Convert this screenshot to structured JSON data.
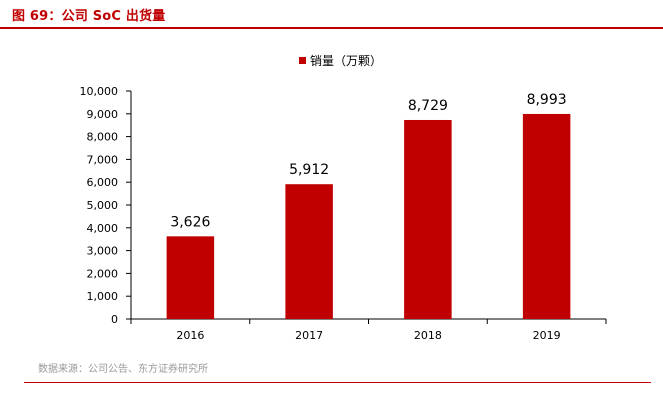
{
  "figure": {
    "title": "图 69：公司 SoC 出货量",
    "source": "数据来源：公司公告、东方证券研究所"
  },
  "colors": {
    "accent": "#c00000",
    "bar": "#c00000",
    "axis": "#000000"
  },
  "chart_data": {
    "type": "bar",
    "title": "",
    "xlabel": "",
    "ylabel": "",
    "categories": [
      "2016",
      "2017",
      "2018",
      "2019"
    ],
    "series": [
      {
        "name": "销量（万颗）",
        "values": [
          3626,
          5912,
          8729,
          8993
        ],
        "labels": [
          "3,626",
          "5,912",
          "8,729",
          "8,993"
        ]
      }
    ],
    "ylim": [
      0,
      10000
    ],
    "yticks": [
      0,
      1000,
      2000,
      3000,
      4000,
      5000,
      6000,
      7000,
      8000,
      9000,
      10000
    ],
    "ytick_labels": [
      "0",
      "1,000",
      "2,000",
      "3,000",
      "4,000",
      "5,000",
      "6,000",
      "7,000",
      "8,000",
      "9,000",
      "10,000"
    ],
    "grid": false,
    "legend": {
      "position": "top-center",
      "label": "销量（万颗）"
    }
  }
}
